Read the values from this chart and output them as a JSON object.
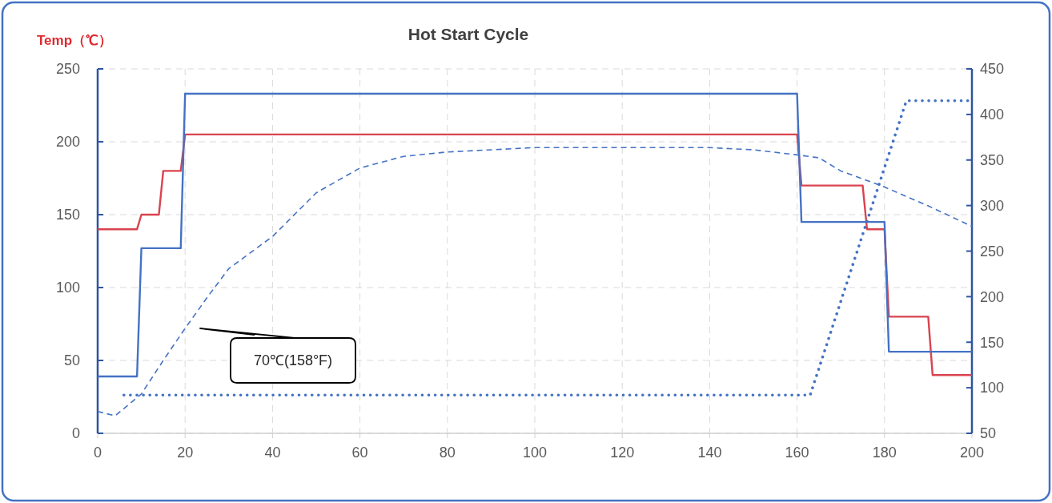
{
  "chart_data": {
    "type": "line",
    "title": "Hot Start Cycle",
    "ylabel": "Temp（℃）",
    "xlim": [
      0,
      200
    ],
    "xticks": [
      0,
      20,
      40,
      60,
      80,
      100,
      120,
      140,
      160,
      180,
      200
    ],
    "ylim": [
      0,
      250
    ],
    "yticks": [
      0,
      50,
      100,
      150,
      200,
      250
    ],
    "y2lim": [
      50,
      450
    ],
    "y2ticks": [
      50,
      100,
      150,
      200,
      250,
      300,
      350,
      400,
      450
    ],
    "grid": true,
    "marker": "none",
    "annotations": [
      "70℃(158°F)"
    ],
    "series": [
      {
        "color": "#d9434f",
        "line_style": "solid",
        "x": [
          0,
          9,
          10,
          14,
          15,
          19,
          20,
          160,
          161,
          175,
          176,
          180,
          181,
          190,
          191,
          200
        ],
        "values": [
          140,
          140,
          150,
          150,
          180,
          180,
          205,
          205,
          170,
          170,
          140,
          140,
          80,
          80,
          40,
          40
        ]
      },
      {
        "color": "#4472c4",
        "line_style": "solid",
        "x": [
          0,
          9,
          10,
          19,
          20,
          160,
          161,
          180,
          181,
          200
        ],
        "values": [
          39,
          39,
          127,
          127,
          233,
          233,
          145,
          145,
          56,
          56
        ]
      },
      {
        "color": "#4472c4",
        "line_style": "dashed",
        "x": [
          0,
          4,
          10,
          15,
          20,
          25,
          30,
          40,
          50,
          60,
          70,
          80,
          100,
          120,
          140,
          150,
          160,
          165,
          170,
          180,
          190,
          200
        ],
        "values": [
          15,
          12,
          27,
          50,
          72,
          93,
          113,
          135,
          165,
          182,
          190,
          193,
          196,
          196,
          196,
          194.5,
          191,
          189,
          180,
          169,
          156,
          142
        ]
      },
      {
        "color": "#4472c4",
        "line_style": "dotted",
        "axis": "y2",
        "x": [
          6,
          163,
          185,
          200
        ],
        "values": [
          92,
          92,
          415,
          415
        ]
      }
    ]
  }
}
